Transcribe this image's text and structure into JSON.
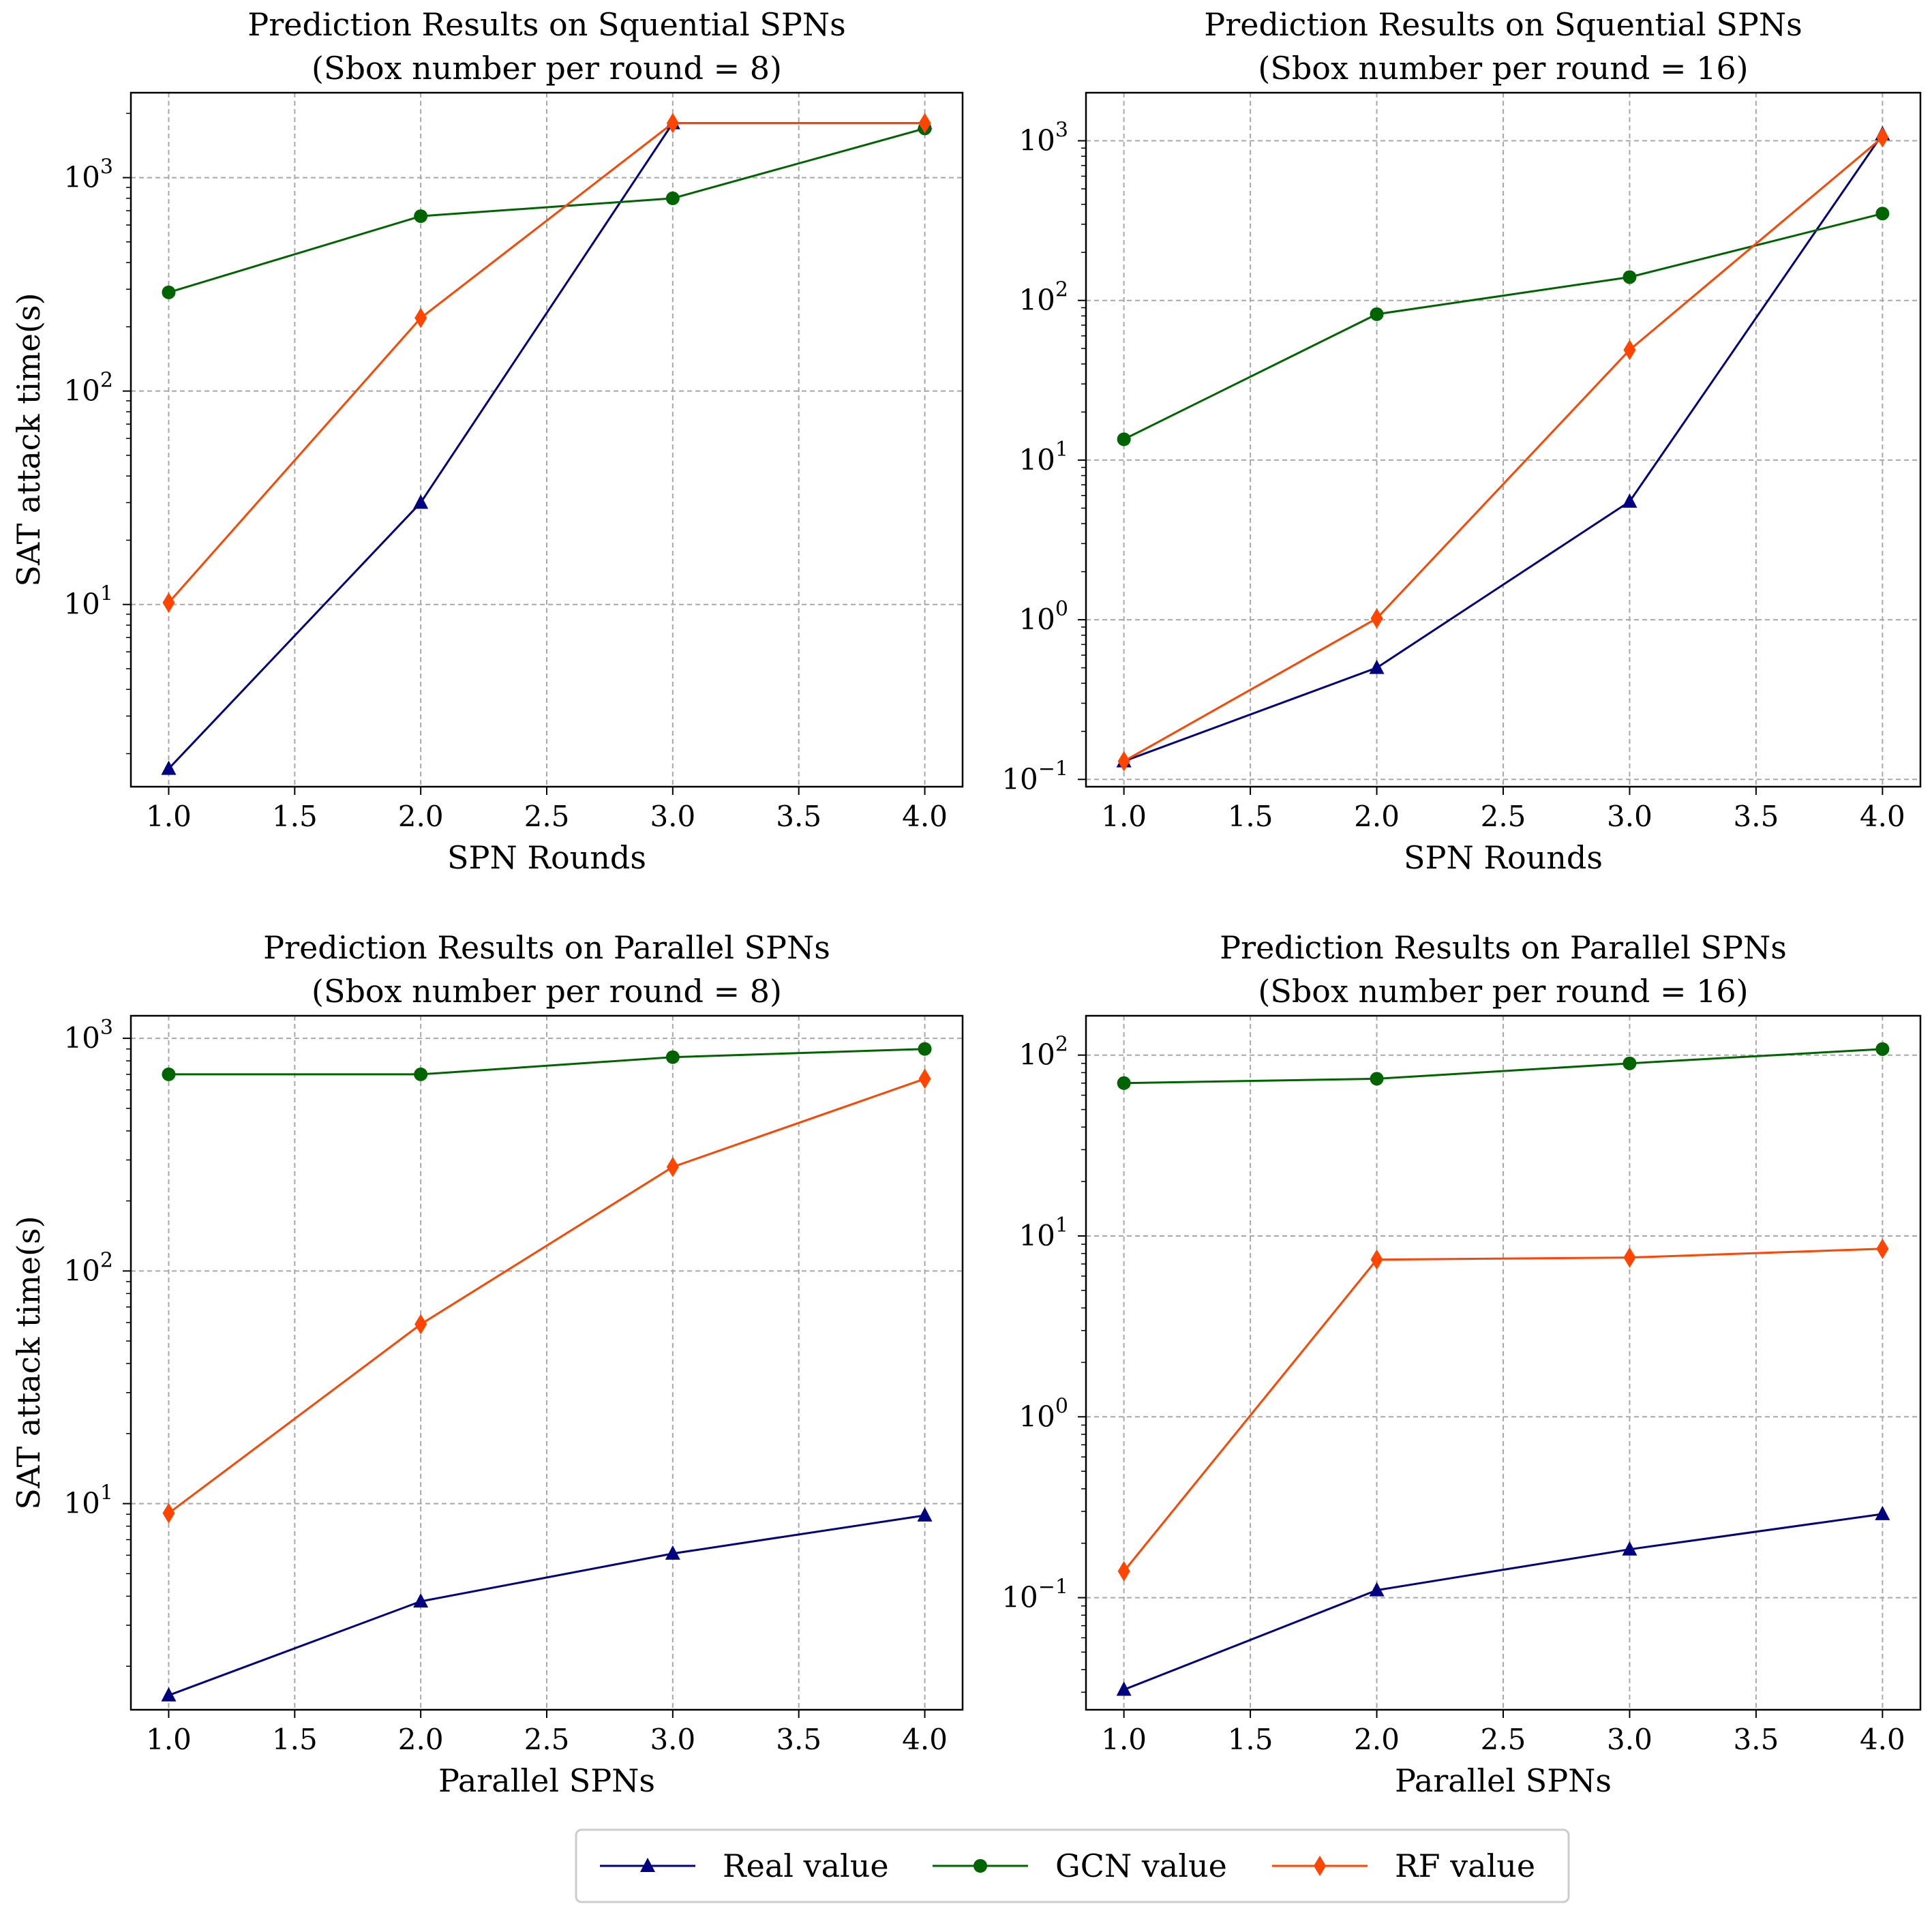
{
  "colors": {
    "real": "#000080",
    "gcn": "#006400",
    "rf": "#ff4500",
    "grid": "#a8a8a8",
    "frame": "#000000"
  },
  "legend": {
    "placement": "bottom-center",
    "entries": [
      {
        "key": "real",
        "label": "Real value",
        "marker": "triangle"
      },
      {
        "key": "gcn",
        "label": "GCN value",
        "marker": "circle"
      },
      {
        "key": "rf",
        "label": "RF value",
        "marker": "diamond"
      }
    ]
  },
  "chart_data": [
    {
      "type": "line",
      "title": [
        "Prediction Results on Squential SPNs",
        "(Sbox number per round = 8)"
      ],
      "xlabel": "SPN Rounds",
      "ylabel": "SAT attack time(s)",
      "yscale": "log",
      "grid": true,
      "x": [
        1.0,
        2.0,
        3.0,
        4.0
      ],
      "xlim": [
        0.85,
        4.15
      ],
      "ylim": [
        1.4,
        2500
      ],
      "xticks": [
        1.0,
        1.5,
        2.0,
        2.5,
        3.0,
        3.5,
        4.0
      ],
      "xtick_labels": [
        "1.0",
        "1.5",
        "2.0",
        "2.5",
        "3.0",
        "3.5",
        "4.0"
      ],
      "yticks": [
        {
          "value": 10,
          "base": "10",
          "exp": "1"
        },
        {
          "value": 100,
          "base": "10",
          "exp": "2"
        },
        {
          "value": 1000,
          "base": "10",
          "exp": "3"
        }
      ],
      "series": [
        {
          "name": "Real value",
          "key": "real",
          "values": [
            1.7,
            30,
            1800,
            1800
          ]
        },
        {
          "name": "GCN value",
          "key": "gcn",
          "values": [
            290,
            660,
            800,
            1700
          ]
        },
        {
          "name": "RF value",
          "key": "rf",
          "values": [
            10.2,
            220,
            1800,
            1800
          ]
        }
      ]
    },
    {
      "type": "line",
      "title": [
        "Prediction Results on Squential SPNs",
        "(Sbox number per round = 16)"
      ],
      "xlabel": "SPN Rounds",
      "ylabel": "",
      "yscale": "log",
      "grid": true,
      "x": [
        1.0,
        2.0,
        3.0,
        4.0
      ],
      "xlim": [
        0.85,
        4.15
      ],
      "ylim": [
        0.09,
        2000
      ],
      "xticks": [
        1.0,
        1.5,
        2.0,
        2.5,
        3.0,
        3.5,
        4.0
      ],
      "xtick_labels": [
        "1.0",
        "1.5",
        "2.0",
        "2.5",
        "3.0",
        "3.5",
        "4.0"
      ],
      "yticks": [
        {
          "value": 0.1,
          "base": "10",
          "exp": "−1"
        },
        {
          "value": 1,
          "base": "10",
          "exp": "0"
        },
        {
          "value": 10,
          "base": "10",
          "exp": "1"
        },
        {
          "value": 100,
          "base": "10",
          "exp": "2"
        },
        {
          "value": 1000,
          "base": "10",
          "exp": "3"
        }
      ],
      "series": [
        {
          "name": "Real value",
          "key": "real",
          "values": [
            0.13,
            0.5,
            5.5,
            1100
          ]
        },
        {
          "name": "GCN value",
          "key": "gcn",
          "values": [
            13.5,
            82,
            140,
            350
          ]
        },
        {
          "name": "RF value",
          "key": "rf",
          "values": [
            0.13,
            1.02,
            49,
            1050
          ]
        }
      ]
    },
    {
      "type": "line",
      "title": [
        "Prediction Results on Parallel SPNs",
        "(Sbox number per round = 8)"
      ],
      "xlabel": "Parallel SPNs",
      "ylabel": "SAT attack time(s)",
      "yscale": "log",
      "grid": true,
      "x": [
        1.0,
        2.0,
        3.0,
        4.0
      ],
      "xlim": [
        0.85,
        4.15
      ],
      "ylim": [
        1.3,
        1250
      ],
      "xticks": [
        1.0,
        1.5,
        2.0,
        2.5,
        3.0,
        3.5,
        4.0
      ],
      "xtick_labels": [
        "1.0",
        "1.5",
        "2.0",
        "2.5",
        "3.0",
        "3.5",
        "4.0"
      ],
      "yticks": [
        {
          "value": 10,
          "base": "10",
          "exp": "1"
        },
        {
          "value": 100,
          "base": "10",
          "exp": "2"
        },
        {
          "value": 1000,
          "base": "10",
          "exp": "3"
        }
      ],
      "series": [
        {
          "name": "Real value",
          "key": "real",
          "values": [
            1.5,
            3.8,
            6.1,
            8.9
          ]
        },
        {
          "name": "GCN value",
          "key": "gcn",
          "values": [
            700,
            700,
            830,
            900
          ]
        },
        {
          "name": "RF value",
          "key": "rf",
          "values": [
            9.1,
            59,
            280,
            670
          ]
        }
      ]
    },
    {
      "type": "line",
      "title": [
        "Prediction Results on Parallel SPNs",
        "(Sbox number per round = 16)"
      ],
      "xlabel": "Parallel SPNs",
      "ylabel": "",
      "yscale": "log",
      "grid": true,
      "x": [
        1.0,
        2.0,
        3.0,
        4.0
      ],
      "xlim": [
        0.85,
        4.15
      ],
      "ylim": [
        0.024,
        165
      ],
      "xticks": [
        1.0,
        1.5,
        2.0,
        2.5,
        3.0,
        3.5,
        4.0
      ],
      "xtick_labels": [
        "1.0",
        "1.5",
        "2.0",
        "2.5",
        "3.0",
        "3.5",
        "4.0"
      ],
      "yticks": [
        {
          "value": 0.1,
          "base": "10",
          "exp": "−1"
        },
        {
          "value": 1,
          "base": "10",
          "exp": "0"
        },
        {
          "value": 10,
          "base": "10",
          "exp": "1"
        },
        {
          "value": 100,
          "base": "10",
          "exp": "2"
        }
      ],
      "series": [
        {
          "name": "Real value",
          "key": "real",
          "values": [
            0.031,
            0.11,
            0.185,
            0.29
          ]
        },
        {
          "name": "GCN value",
          "key": "gcn",
          "values": [
            70,
            74,
            90,
            108
          ]
        },
        {
          "name": "RF value",
          "key": "rf",
          "values": [
            0.14,
            7.4,
            7.6,
            8.5
          ]
        }
      ]
    }
  ]
}
